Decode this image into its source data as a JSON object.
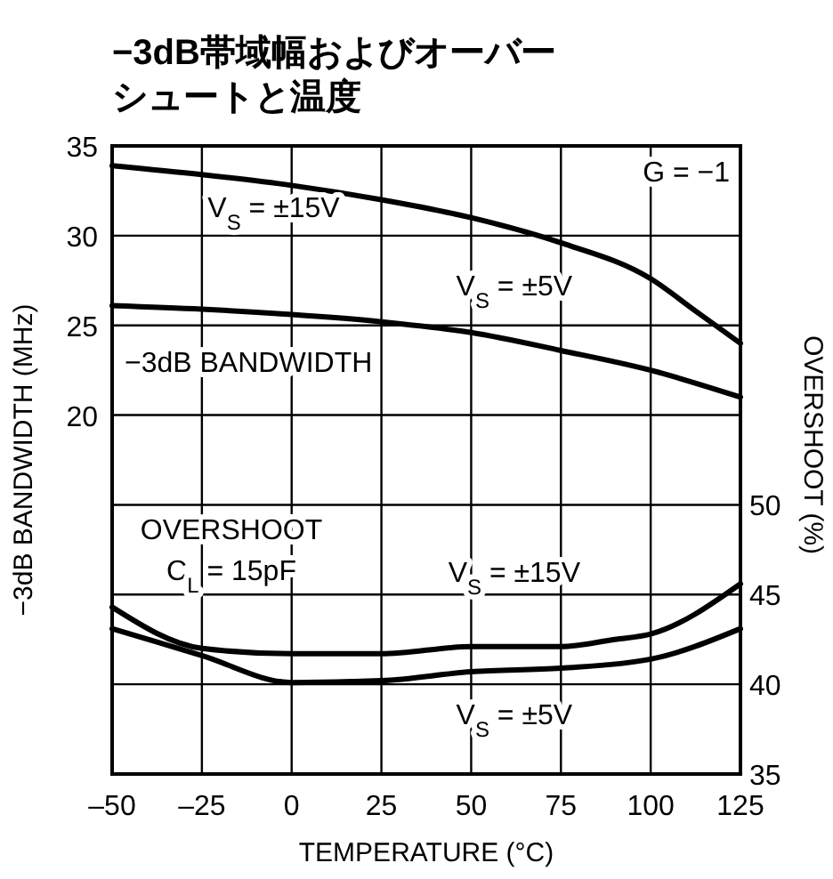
{
  "chart_data": {
    "type": "line",
    "title": "−3dB帯域幅およびオーバーシュートと温度",
    "xlabel": "TEMPERATURE (°C)",
    "ylabel": "−3dB BANDWIDTH (MHz)",
    "y2label": "OVERSHOOT (%)",
    "xlim": [
      -50,
      125
    ],
    "xticks": [
      {
        "value": -50,
        "label": "–50"
      },
      {
        "value": -25,
        "label": "–25"
      },
      0,
      25,
      50,
      75,
      100,
      125
    ],
    "ylim": [
      0,
      35
    ],
    "yticks": [
      {
        "value": 5,
        "label": null
      },
      {
        "value": 10,
        "label": null
      },
      {
        "value": 15,
        "label": null
      },
      20,
      25,
      30,
      35
    ],
    "y2lim": [
      35,
      70
    ],
    "y2ticks": [
      35,
      40,
      45,
      50
    ],
    "grid": true,
    "marker": "none",
    "line_style": "solid",
    "series": [
      {
        "name": "V$_{S}$ = ±15V",
        "color": "#000000",
        "x": [
          -50,
          -25,
          0,
          25,
          50,
          75,
          100,
          112.5,
          125
        ],
        "values": [
          33.9,
          33.4,
          32.8,
          32.0,
          31.0,
          29.6,
          27.6,
          25.8,
          24.0
        ]
      },
      {
        "name": "V$_{S}$ = ±5V",
        "color": "#000000",
        "x": [
          -50,
          -25,
          0,
          25,
          50,
          75,
          100,
          125
        ],
        "values": [
          26.1,
          25.9,
          25.6,
          25.2,
          24.6,
          23.6,
          22.5,
          21.0
        ]
      },
      {
        "name": "V$_{S}$ = ±15V",
        "color": "#000000",
        "axis": "y2",
        "x": [
          -50,
          -25,
          0,
          25,
          50,
          75,
          90,
          100,
          125
        ],
        "values": [
          44.3,
          42.0,
          41.7,
          41.7,
          42.1,
          42.1,
          42.5,
          42.8,
          45.6
        ]
      },
      {
        "name": "V$_{S}$ = ±5V",
        "color": "#000000",
        "axis": "y2",
        "x": [
          -50,
          -25,
          0,
          25,
          50,
          75,
          100,
          125
        ],
        "values": [
          43.1,
          41.6,
          40.1,
          40.2,
          40.7,
          40.9,
          41.4,
          43.1
        ]
      }
    ],
    "annotations": [
      "G = −1",
      "−3dB BANDWIDTH",
      "OVERSHOOT",
      "C$_{L}$ = 15pF"
    ]
  }
}
